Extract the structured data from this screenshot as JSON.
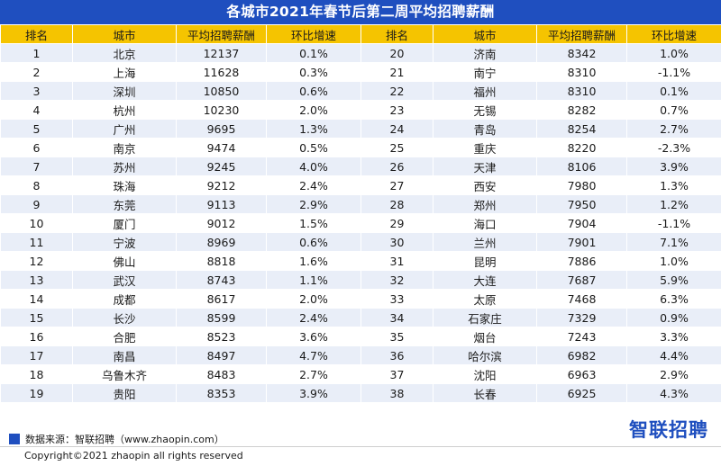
{
  "title": "各城市2021年春节后第二周平均招聘薪酬",
  "headers": [
    "排名",
    "城市",
    "平均招聘薪酬",
    "环比增速",
    "排名",
    "城市",
    "平均招聘薪酬",
    "环比增速"
  ],
  "rows": [
    [
      {
        "rank": "1",
        "city": "北京",
        "salary": "12137",
        "growth": "0.1%"
      },
      {
        "rank": "20",
        "city": "济南",
        "salary": "8342",
        "growth": "1.0%"
      }
    ],
    [
      {
        "rank": "2",
        "city": "上海",
        "salary": "11628",
        "growth": "0.3%"
      },
      {
        "rank": "21",
        "city": "南宁",
        "salary": "8310",
        "growth": "-1.1%"
      }
    ],
    [
      {
        "rank": "3",
        "city": "深圳",
        "salary": "10850",
        "growth": "0.6%"
      },
      {
        "rank": "22",
        "city": "福州",
        "salary": "8310",
        "growth": "0.1%"
      }
    ],
    [
      {
        "rank": "4",
        "city": "杭州",
        "salary": "10230",
        "growth": "2.0%"
      },
      {
        "rank": "23",
        "city": "无锡",
        "salary": "8282",
        "growth": "0.7%"
      }
    ],
    [
      {
        "rank": "5",
        "city": "广州",
        "salary": "9695",
        "growth": "1.3%"
      },
      {
        "rank": "24",
        "city": "青岛",
        "salary": "8254",
        "growth": "2.7%"
      }
    ],
    [
      {
        "rank": "6",
        "city": "南京",
        "salary": "9474",
        "growth": "0.5%"
      },
      {
        "rank": "25",
        "city": "重庆",
        "salary": "8220",
        "growth": "-2.3%"
      }
    ],
    [
      {
        "rank": "7",
        "city": "苏州",
        "salary": "9245",
        "growth": "4.0%"
      },
      {
        "rank": "26",
        "city": "天津",
        "salary": "8106",
        "growth": "3.9%"
      }
    ],
    [
      {
        "rank": "8",
        "city": "珠海",
        "salary": "9212",
        "growth": "2.4%"
      },
      {
        "rank": "27",
        "city": "西安",
        "salary": "7980",
        "growth": "1.3%"
      }
    ],
    [
      {
        "rank": "9",
        "city": "东莞",
        "salary": "9113",
        "growth": "2.9%"
      },
      {
        "rank": "28",
        "city": "郑州",
        "salary": "7950",
        "growth": "1.2%"
      }
    ],
    [
      {
        "rank": "10",
        "city": "厦门",
        "salary": "9012",
        "growth": "1.5%"
      },
      {
        "rank": "29",
        "city": "海口",
        "salary": "7904",
        "growth": "-1.1%"
      }
    ],
    [
      {
        "rank": "11",
        "city": "宁波",
        "salary": "8969",
        "growth": "0.6%"
      },
      {
        "rank": "30",
        "city": "兰州",
        "salary": "7901",
        "growth": "7.1%"
      }
    ],
    [
      {
        "rank": "12",
        "city": "佛山",
        "salary": "8818",
        "growth": "1.6%"
      },
      {
        "rank": "31",
        "city": "昆明",
        "salary": "7886",
        "growth": "1.0%"
      }
    ],
    [
      {
        "rank": "13",
        "city": "武汉",
        "salary": "8743",
        "growth": "1.1%"
      },
      {
        "rank": "32",
        "city": "大连",
        "salary": "7687",
        "growth": "5.9%"
      }
    ],
    [
      {
        "rank": "14",
        "city": "成都",
        "salary": "8617",
        "growth": "2.0%"
      },
      {
        "rank": "33",
        "city": "太原",
        "salary": "7468",
        "growth": "6.3%"
      }
    ],
    [
      {
        "rank": "15",
        "city": "长沙",
        "salary": "8599",
        "growth": "2.4%"
      },
      {
        "rank": "34",
        "city": "石家庄",
        "salary": "7329",
        "growth": "0.9%"
      }
    ],
    [
      {
        "rank": "16",
        "city": "合肥",
        "salary": "8523",
        "growth": "3.6%"
      },
      {
        "rank": "35",
        "city": "烟台",
        "salary": "7243",
        "growth": "3.3%"
      }
    ],
    [
      {
        "rank": "17",
        "city": "南昌",
        "salary": "8497",
        "growth": "4.7%"
      },
      {
        "rank": "36",
        "city": "哈尔滨",
        "salary": "6982",
        "growth": "4.4%"
      }
    ],
    [
      {
        "rank": "18",
        "city": "乌鲁木齐",
        "salary": "8483",
        "growth": "2.7%"
      },
      {
        "rank": "37",
        "city": "沈阳",
        "salary": "6963",
        "growth": "2.9%"
      }
    ],
    [
      {
        "rank": "19",
        "city": "贵阳",
        "salary": "8353",
        "growth": "3.9%"
      },
      {
        "rank": "38",
        "city": "长春",
        "salary": "6925",
        "growth": "4.3%"
      }
    ]
  ],
  "source": "数据来源：智联招聘（www.zhaopin.com）",
  "logo": "智联招聘",
  "copyright": "Copyright©2021 zhaopin all rights reserved",
  "colors": {
    "title_bg": "#1f4fbf",
    "header_bg": "#f5c400",
    "stripe": "#e9eef8",
    "logo": "#1f4fbf"
  }
}
